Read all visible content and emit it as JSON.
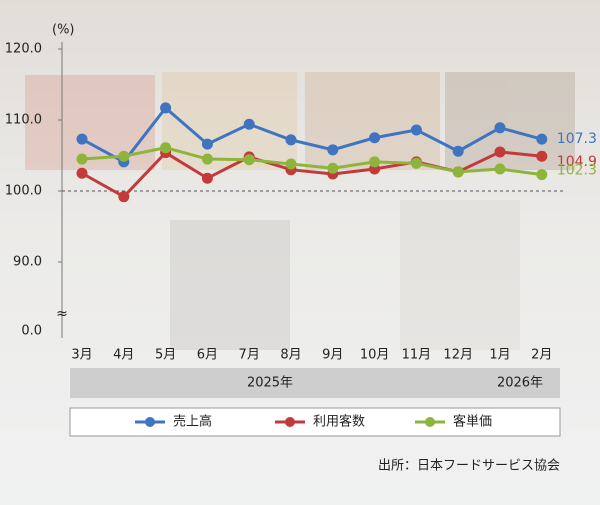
{
  "chart_data": {
    "type": "line",
    "unit_label": "(%)",
    "categories": [
      "3月",
      "4月",
      "5月",
      "6月",
      "7月",
      "8月",
      "9月",
      "10月",
      "11月",
      "12月",
      "1月",
      "2月"
    ],
    "year_labels": [
      "2025年",
      "2026年"
    ],
    "series": [
      {
        "name": "売上高",
        "color": "#3f74c0",
        "values": [
          107.3,
          104.1,
          111.7,
          106.6,
          109.4,
          107.2,
          105.8,
          107.5,
          108.6,
          105.6,
          108.9,
          107.3
        ]
      },
      {
        "name": "利用客数",
        "color": "#c23a3a",
        "values": [
          102.5,
          99.2,
          105.4,
          101.8,
          104.8,
          103.0,
          102.4,
          103.1,
          104.1,
          102.7,
          105.5,
          104.9
        ]
      },
      {
        "name": "客単価",
        "color": "#8db53c",
        "values": [
          104.5,
          104.9,
          106.1,
          104.5,
          104.4,
          103.8,
          103.2,
          104.1,
          103.9,
          102.7,
          103.1,
          102.3
        ]
      }
    ],
    "ylim": [
      80,
      120
    ],
    "yticks": [
      {
        "value": 90,
        "label": "90.0"
      },
      {
        "value": 100,
        "label": "100.0"
      },
      {
        "value": 110,
        "label": "110.0"
      },
      {
        "value": 120,
        "label": "120.0"
      }
    ],
    "y_break_label": "0.0",
    "y_break_symbol": "≈",
    "reference_line": 100,
    "source": "出所：日本フードサービス協会"
  }
}
